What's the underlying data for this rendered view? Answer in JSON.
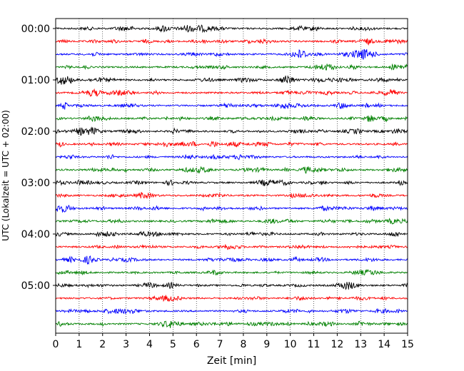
{
  "chart_data": {
    "type": "line",
    "title": "",
    "xlabel": "Zeit  [min]",
    "ylabel": "UTC (Lokalzeit = UTC + 02:00)",
    "xlim": [
      0,
      15
    ],
    "x_ticks": [
      0,
      1,
      2,
      3,
      4,
      5,
      6,
      7,
      8,
      9,
      10,
      11,
      12,
      13,
      14,
      15
    ],
    "x_tick_labels": [
      "0",
      "1",
      "2",
      "3",
      "4",
      "5",
      "6",
      "7",
      "8",
      "9",
      "10",
      "11",
      "12",
      "13",
      "14",
      "15"
    ],
    "vertical_grid": true,
    "grid_style": "dotted",
    "y_tick_labels": [
      {
        "label": "00:00",
        "trace_index": 0
      },
      {
        "label": "01:00",
        "trace_index": 4
      },
      {
        "label": "02:00",
        "trace_index": 8
      },
      {
        "label": "03:00",
        "trace_index": 12
      },
      {
        "label": "04:00",
        "trace_index": 16
      },
      {
        "label": "05:00",
        "trace_index": 20
      }
    ],
    "trace_minutes": 15,
    "trace_count": 24,
    "color_cycle": [
      "#000000",
      "#ff0000",
      "#0000ff",
      "#008000"
    ],
    "notable_events": [
      {
        "trace_index": 2,
        "x_start": 12.7,
        "x_end": 13.6,
        "note_amplitude": "large"
      },
      {
        "trace_index": 7,
        "x_start": 13.2,
        "x_end": 13.6,
        "note_amplitude": "medium"
      }
    ]
  }
}
